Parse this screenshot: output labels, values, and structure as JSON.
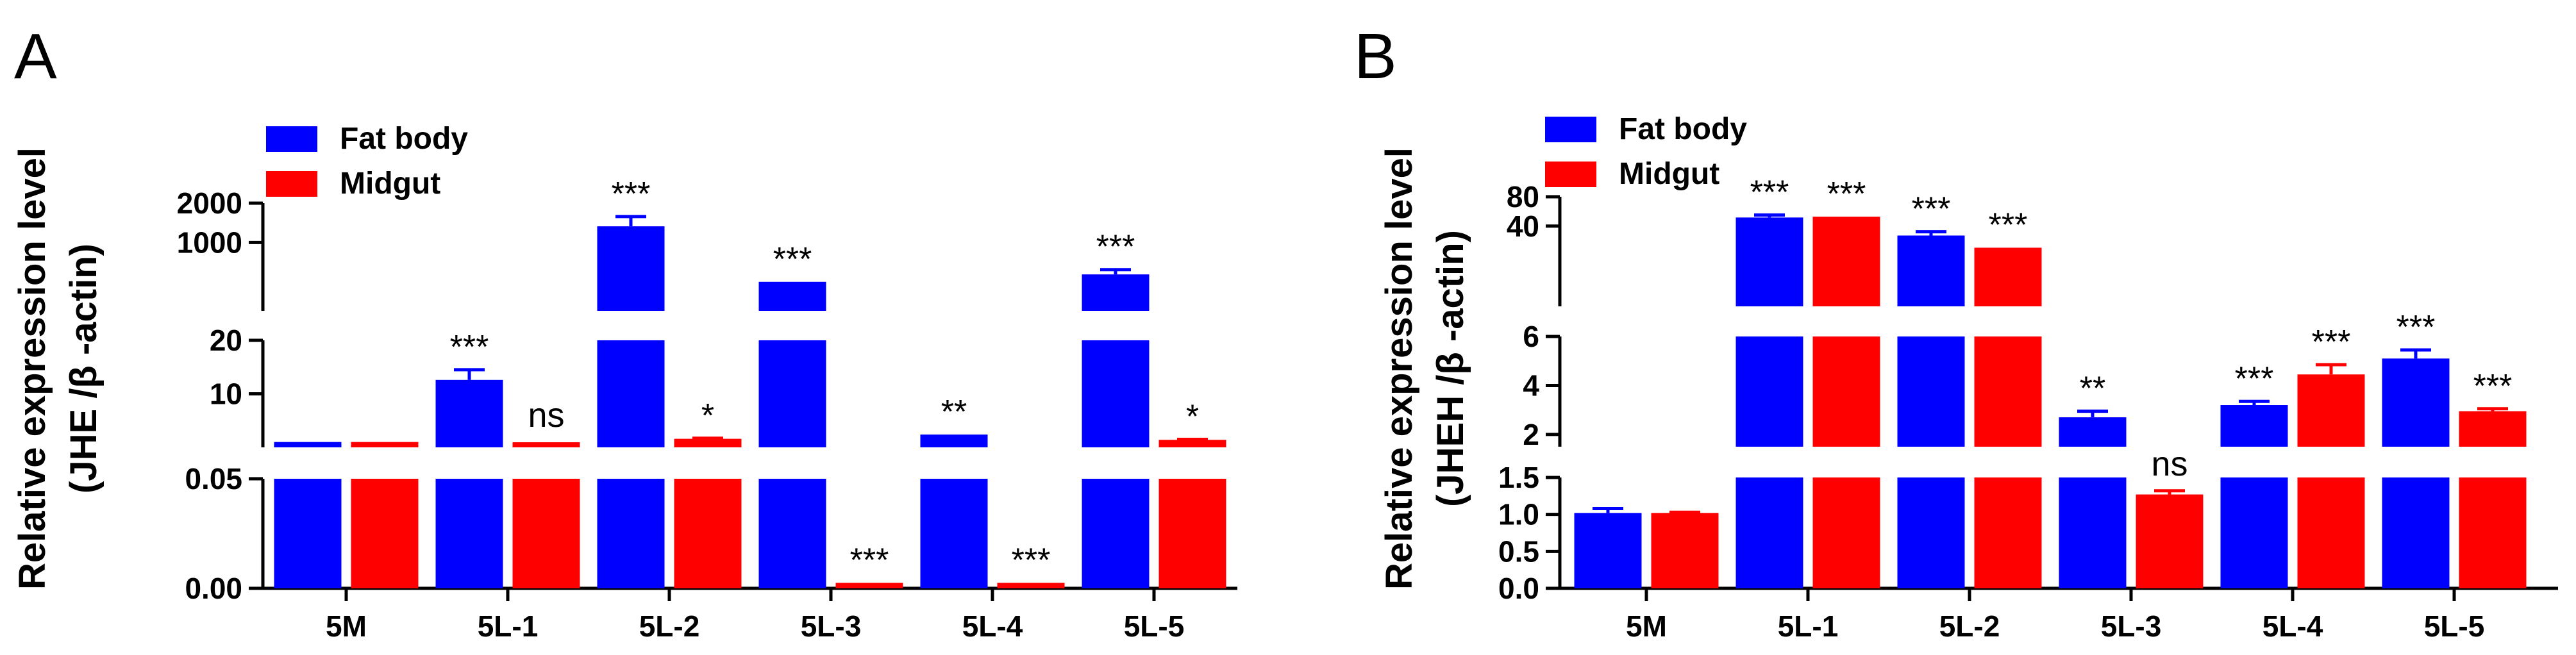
{
  "colors": {
    "fat_body": "#0000ff",
    "midgut": "#ff0000",
    "axis": "#000000"
  },
  "chart_data": [
    {
      "panel_label": "A",
      "type": "bar",
      "ylabel_line1": "Relative expression level",
      "ylabel_line2": "(JHE /β -actin)",
      "categories": [
        "5M",
        "5L-1",
        "5L-2",
        "5L-3",
        "5L-4",
        "5L-5"
      ],
      "legend": [
        "Fat body",
        "Midgut"
      ],
      "series": [
        {
          "name": "Fat body",
          "values": [
            1.0,
            12.6,
            1330,
            500,
            2.4,
            570
          ],
          "errors": [
            0,
            1.9,
            250,
            0,
            0,
            50
          ],
          "significance": [
            "",
            "***",
            "***",
            "***",
            "**",
            "***"
          ]
        },
        {
          "name": "Midgut",
          "values": [
            1.0,
            0.95,
            1.6,
            0.0025,
            0.0025,
            1.4
          ],
          "errors": [
            0,
            0,
            0.1,
            0,
            0,
            0.1
          ],
          "significance": [
            "",
            "ns",
            "*",
            "***",
            "***",
            "*"
          ]
        }
      ],
      "y_axis_segments": [
        {
          "range": [
            0,
            0.05
          ],
          "ticks": [
            "0.00",
            "0.05"
          ]
        },
        {
          "range": [
            0,
            20
          ],
          "ticks": [
            "10",
            "20"
          ]
        },
        {
          "range": [
            0,
            2000
          ],
          "ticks": [
            "1000",
            "2000"
          ]
        }
      ]
    },
    {
      "panel_label": "B",
      "type": "bar",
      "ylabel_line1": "Relative expression level",
      "ylabel_line2": "(JHEH /β -actin)",
      "categories": [
        "5M",
        "5L-1",
        "5L-2",
        "5L-3",
        "5L-4",
        "5L-5"
      ],
      "legend": [
        "Fat body",
        "Midgut"
      ],
      "series": [
        {
          "name": "Fat body",
          "values": [
            1.02,
            49,
            32,
            2.7,
            3.2,
            5.1
          ],
          "errors": [
            0.06,
            3,
            3,
            0.25,
            0.15,
            0.35
          ],
          "significance": [
            "",
            "***",
            "***",
            "**",
            "***",
            "***"
          ]
        },
        {
          "name": "Midgut",
          "values": [
            1.02,
            50,
            24,
            1.27,
            4.45,
            2.95
          ],
          "errors": [
            0.01,
            0,
            0,
            0.05,
            0.4,
            0.1
          ],
          "significance": [
            "",
            "***",
            "***",
            "ns",
            "***",
            "***"
          ]
        }
      ],
      "y_axis_segments": [
        {
          "range": [
            0,
            1.5
          ],
          "ticks": [
            "0.0",
            "0.5",
            "1.0",
            "1.5"
          ]
        },
        {
          "range": [
            1.5,
            6
          ],
          "ticks": [
            "2",
            "4",
            "6"
          ]
        },
        {
          "range": [
            6,
            80
          ],
          "ticks": [
            "40",
            "80"
          ]
        }
      ]
    }
  ]
}
